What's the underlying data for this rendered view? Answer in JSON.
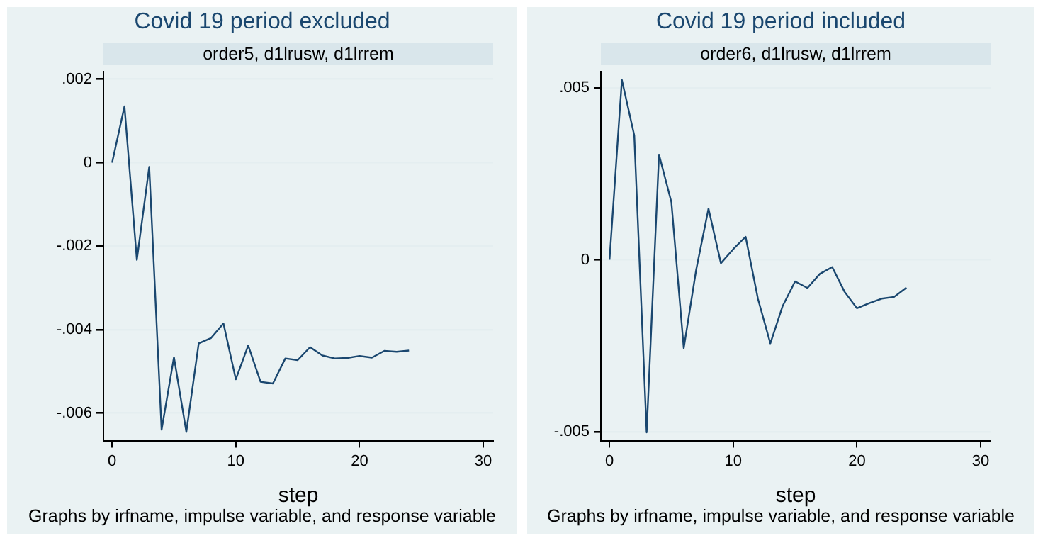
{
  "chart_data": [
    {
      "type": "line",
      "title": "Covid 19 period excluded",
      "subtitle": "order5, d1lrusw, d1lrrem",
      "xlabel": "step",
      "annotations": [
        "Graphs by irfname, impulse variable, and response variable"
      ],
      "x": [
        0,
        1,
        2,
        3,
        4,
        5,
        6,
        7,
        8,
        9,
        10,
        11,
        12,
        13,
        14,
        15,
        16,
        17,
        18,
        19,
        20,
        21,
        22,
        23,
        24
      ],
      "series": [
        {
          "color": "#1a476f",
          "values": [
            0,
            0.00135,
            -0.00233,
            -0.0001,
            -0.0064,
            -0.00466,
            -0.00645,
            -0.00433,
            -0.0042,
            -0.00385,
            -0.00519,
            -0.00438,
            -0.00525,
            -0.00529,
            -0.00469,
            -0.00473,
            -0.00442,
            -0.00462,
            -0.00469,
            -0.00468,
            -0.00463,
            -0.00467,
            -0.00451,
            -0.00453,
            -0.0045
          ]
        }
      ],
      "xlim": [
        -0.7,
        30.8
      ],
      "xticks": [
        0,
        10,
        20,
        30
      ],
      "ylim": [
        -0.00666,
        0.00218
      ],
      "yticks": [
        {
          "value": -0.006,
          "label": "-.006"
        },
        {
          "value": -0.004,
          "label": "-.004"
        },
        {
          "value": -0.002,
          "label": "-.002"
        },
        0,
        {
          "value": 0.002,
          "label": ".002"
        }
      ],
      "grid": "y",
      "legend": false,
      "marker": "none",
      "line_style": "solid"
    },
    {
      "type": "line",
      "title": "Covid 19 period included",
      "subtitle": "order6, d1lrusw, d1lrrem",
      "xlabel": "step",
      "annotations": [
        "Graphs by irfname, impulse variable, and response variable"
      ],
      "x": [
        0,
        1,
        2,
        3,
        4,
        5,
        6,
        7,
        8,
        9,
        10,
        11,
        12,
        13,
        14,
        15,
        16,
        17,
        18,
        19,
        20,
        21,
        22,
        23,
        24
      ],
      "series": [
        {
          "color": "#1a476f",
          "values": [
            0,
            0.00523,
            0.00362,
            -0.00502,
            0.00306,
            0.00168,
            -0.00257,
            -0.0003,
            0.00149,
            -0.0001,
            0.00031,
            0.00067,
            -0.00114,
            -0.00243,
            -0.00134,
            -0.00063,
            -0.00082,
            -0.00041,
            -0.00021,
            -0.00093,
            -0.00141,
            -0.00126,
            -0.00113,
            -0.00108,
            -0.00081
          ]
        }
      ],
      "xlim": [
        -0.7,
        30.8
      ],
      "xticks": [
        0,
        10,
        20,
        30
      ],
      "ylim": [
        -0.00526,
        0.00547
      ],
      "yticks": [
        {
          "value": -0.005,
          "label": "-.005"
        },
        0,
        {
          "value": 0.005,
          "label": ".005"
        }
      ],
      "grid": "y",
      "legend": false,
      "marker": "none",
      "line_style": "solid"
    }
  ]
}
